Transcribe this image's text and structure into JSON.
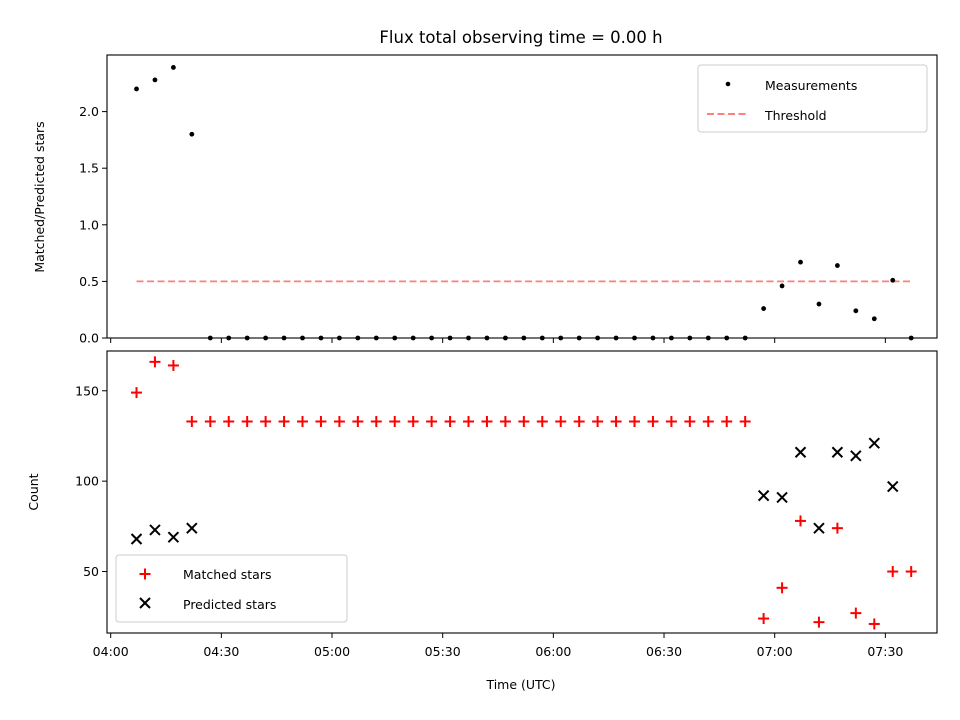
{
  "chart_data": [
    {
      "type": "scatter",
      "title": "Flux total observing time = 0.00 h",
      "xlabel": "",
      "ylabel": "Matched/Predicted stars",
      "xlim": [
        "03:59",
        "07:44"
      ],
      "ylim": [
        0,
        2.5
      ],
      "yticks": [
        "0.0",
        "0.5",
        "1.0",
        "1.5",
        "2.0"
      ],
      "legend_position": "upper right",
      "series": [
        {
          "name": "Measurements",
          "marker": "dot",
          "color": "#000000",
          "x": [
            "04:07",
            "04:12",
            "04:17",
            "04:22",
            "04:27",
            "04:32",
            "04:37",
            "04:42",
            "04:47",
            "04:52",
            "04:57",
            "05:02",
            "05:07",
            "05:12",
            "05:17",
            "05:22",
            "05:27",
            "05:32",
            "05:37",
            "05:42",
            "05:47",
            "05:52",
            "05:57",
            "06:02",
            "06:07",
            "06:12",
            "06:17",
            "06:22",
            "06:27",
            "06:32",
            "06:37",
            "06:42",
            "06:47",
            "06:52",
            "06:57",
            "07:02",
            "07:07",
            "07:12",
            "07:17",
            "07:22",
            "07:27",
            "07:32",
            "07:37"
          ],
          "y": [
            2.2,
            2.28,
            2.39,
            1.8,
            0,
            0,
            0,
            0,
            0,
            0,
            0,
            0,
            0,
            0,
            0,
            0,
            0,
            0,
            0,
            0,
            0,
            0,
            0,
            0,
            0,
            0,
            0,
            0,
            0,
            0,
            0,
            0,
            0,
            0,
            0.26,
            0.46,
            0.67,
            0.3,
            0.64,
            0.24,
            0.17,
            0.51,
            0
          ]
        },
        {
          "name": "Threshold",
          "style": "dashed",
          "color": "#ff7f7f",
          "x": [
            "04:07",
            "07:37"
          ],
          "y": [
            0.5,
            0.5
          ]
        }
      ]
    },
    {
      "type": "scatter",
      "xlabel": "Time (UTC)",
      "ylabel": "Count",
      "xlim": [
        "03:59",
        "07:44"
      ],
      "ylim": [
        16,
        172
      ],
      "xticks": [
        "04:00",
        "04:30",
        "05:00",
        "05:30",
        "06:00",
        "06:30",
        "07:00",
        "07:30"
      ],
      "yticks": [
        "50",
        "100",
        "150"
      ],
      "legend_position": "lower left",
      "series": [
        {
          "name": "Matched stars",
          "marker": "plus",
          "color": "#ff0000",
          "x": [
            "04:07",
            "04:12",
            "04:17",
            "04:22",
            "04:27",
            "04:32",
            "04:37",
            "04:42",
            "04:47",
            "04:52",
            "04:57",
            "05:02",
            "05:07",
            "05:12",
            "05:17",
            "05:22",
            "05:27",
            "05:32",
            "05:37",
            "05:42",
            "05:47",
            "05:52",
            "05:57",
            "06:02",
            "06:07",
            "06:12",
            "06:17",
            "06:22",
            "06:27",
            "06:32",
            "06:37",
            "06:42",
            "06:47",
            "06:52",
            "06:57",
            "07:02",
            "07:07",
            "07:12",
            "07:17",
            "07:22",
            "07:27",
            "07:32",
            "07:37"
          ],
          "y": [
            149,
            166,
            164,
            133,
            133,
            133,
            133,
            133,
            133,
            133,
            133,
            133,
            133,
            133,
            133,
            133,
            133,
            133,
            133,
            133,
            133,
            133,
            133,
            133,
            133,
            133,
            133,
            133,
            133,
            133,
            133,
            133,
            133,
            133,
            24,
            41,
            78,
            22,
            74,
            27,
            21,
            50,
            50
          ]
        },
        {
          "name": "Predicted stars",
          "marker": "x",
          "color": "#000000",
          "x": [
            "04:07",
            "04:12",
            "04:17",
            "04:22",
            "06:57",
            "07:02",
            "07:07",
            "07:12",
            "07:17",
            "07:22",
            "07:27",
            "07:32"
          ],
          "y": [
            68,
            73,
            69,
            74,
            92,
            91,
            116,
            74,
            116,
            114,
            121,
            97
          ]
        }
      ]
    }
  ]
}
